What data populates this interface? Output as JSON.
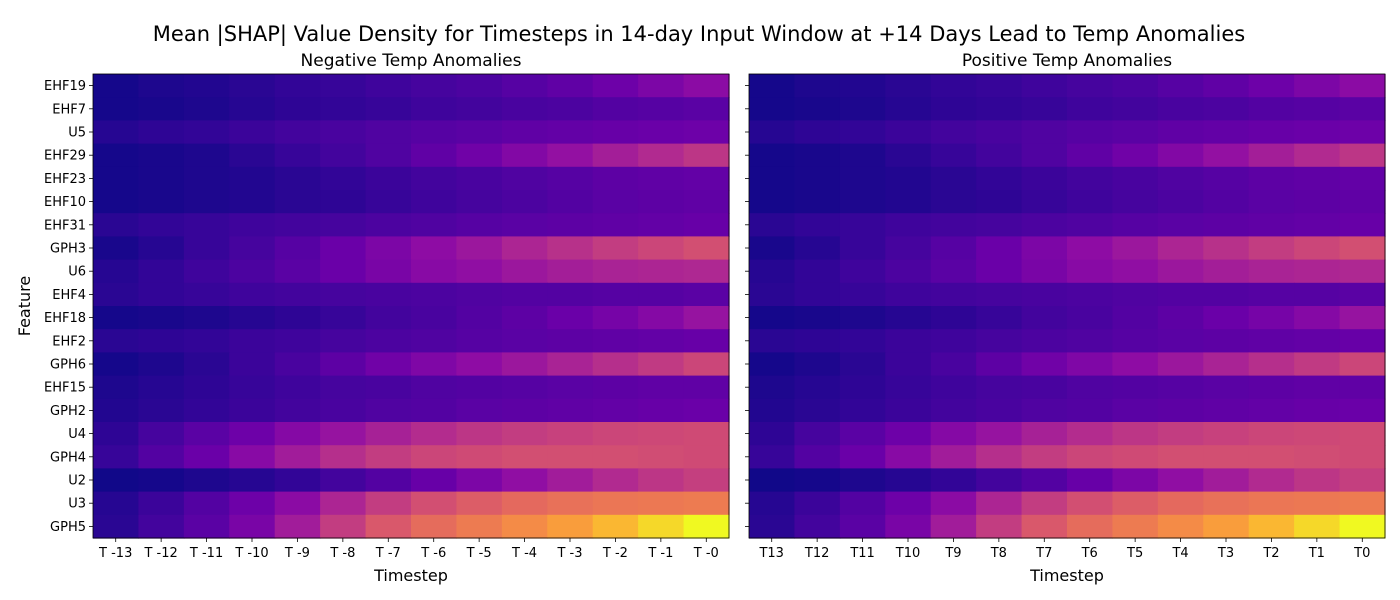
{
  "chart_data": {
    "type": "heatmap",
    "suptitle": "Mean |SHAP| Value Density for Timesteps in 14-day Input Window at +14 Days Lead to Temp Anomalies",
    "ylabel": "Feature",
    "colormap": "plasma",
    "features": [
      "EHF19",
      "EHF7",
      "U5",
      "EHF29",
      "EHF23",
      "EHF10",
      "EHF31",
      "GPH3",
      "U6",
      "EHF4",
      "EHF18",
      "EHF2",
      "GPH6",
      "EHF15",
      "GPH2",
      "U4",
      "GPH4",
      "U2",
      "U3",
      "GPH5"
    ],
    "panels": [
      {
        "title": "Negative Temp Anomalies",
        "xlabel": "Timestep",
        "xticks": [
          "T -13",
          "T -12",
          "T -11",
          "T -10",
          "T -9",
          "T -8",
          "T -7",
          "T -6",
          "T -5",
          "T -4",
          "T -3",
          "T -2",
          "T -1",
          "T -0"
        ],
        "values": [
          [
            0.02,
            0.04,
            0.05,
            0.07,
            0.09,
            0.1,
            0.12,
            0.14,
            0.16,
            0.19,
            0.22,
            0.26,
            0.31,
            0.36
          ],
          [
            0.02,
            0.03,
            0.04,
            0.06,
            0.08,
            0.09,
            0.1,
            0.12,
            0.13,
            0.15,
            0.16,
            0.18,
            0.19,
            0.2
          ],
          [
            0.06,
            0.08,
            0.09,
            0.11,
            0.13,
            0.15,
            0.17,
            0.19,
            0.2,
            0.22,
            0.23,
            0.24,
            0.25,
            0.26
          ],
          [
            0.02,
            0.03,
            0.04,
            0.07,
            0.1,
            0.13,
            0.17,
            0.22,
            0.27,
            0.33,
            0.39,
            0.45,
            0.5,
            0.55
          ],
          [
            0.02,
            0.03,
            0.04,
            0.05,
            0.07,
            0.09,
            0.11,
            0.13,
            0.15,
            0.17,
            0.19,
            0.21,
            0.22,
            0.23
          ],
          [
            0.02,
            0.03,
            0.04,
            0.05,
            0.07,
            0.08,
            0.1,
            0.12,
            0.14,
            0.16,
            0.18,
            0.2,
            0.21,
            0.22
          ],
          [
            0.07,
            0.09,
            0.1,
            0.12,
            0.13,
            0.14,
            0.16,
            0.17,
            0.19,
            0.2,
            0.21,
            0.22,
            0.23,
            0.24
          ],
          [
            0.03,
            0.06,
            0.1,
            0.14,
            0.19,
            0.25,
            0.31,
            0.37,
            0.42,
            0.48,
            0.53,
            0.58,
            0.62,
            0.66
          ],
          [
            0.06,
            0.09,
            0.12,
            0.16,
            0.2,
            0.25,
            0.3,
            0.35,
            0.38,
            0.42,
            0.45,
            0.47,
            0.48,
            0.49
          ],
          [
            0.07,
            0.09,
            0.1,
            0.12,
            0.13,
            0.14,
            0.15,
            0.16,
            0.17,
            0.18,
            0.18,
            0.19,
            0.19,
            0.2
          ],
          [
            0.02,
            0.03,
            0.04,
            0.06,
            0.08,
            0.1,
            0.13,
            0.15,
            0.18,
            0.21,
            0.25,
            0.29,
            0.34,
            0.4
          ],
          [
            0.07,
            0.08,
            0.09,
            0.11,
            0.12,
            0.14,
            0.16,
            0.17,
            0.19,
            0.2,
            0.21,
            0.22,
            0.23,
            0.24
          ],
          [
            0.02,
            0.04,
            0.07,
            0.11,
            0.15,
            0.21,
            0.27,
            0.32,
            0.37,
            0.42,
            0.47,
            0.52,
            0.57,
            0.62
          ],
          [
            0.04,
            0.06,
            0.08,
            0.1,
            0.12,
            0.14,
            0.15,
            0.17,
            0.18,
            0.19,
            0.2,
            0.21,
            0.22,
            0.22
          ],
          [
            0.05,
            0.07,
            0.09,
            0.11,
            0.13,
            0.15,
            0.17,
            0.18,
            0.2,
            0.21,
            0.22,
            0.23,
            0.24,
            0.25
          ],
          [
            0.08,
            0.14,
            0.2,
            0.26,
            0.34,
            0.4,
            0.46,
            0.51,
            0.55,
            0.58,
            0.6,
            0.62,
            0.63,
            0.64
          ],
          [
            0.1,
            0.18,
            0.25,
            0.35,
            0.44,
            0.52,
            0.58,
            0.62,
            0.64,
            0.66,
            0.66,
            0.66,
            0.65,
            0.64
          ],
          [
            0.01,
            0.02,
            0.04,
            0.06,
            0.09,
            0.13,
            0.18,
            0.24,
            0.31,
            0.38,
            0.44,
            0.5,
            0.55,
            0.59
          ],
          [
            0.06,
            0.11,
            0.18,
            0.26,
            0.36,
            0.48,
            0.58,
            0.66,
            0.72,
            0.77,
            0.8,
            0.82,
            0.83,
            0.84
          ],
          [
            0.07,
            0.13,
            0.2,
            0.3,
            0.44,
            0.58,
            0.7,
            0.78,
            0.84,
            0.89,
            0.93,
            0.96,
            0.98,
            1.0
          ]
        ]
      },
      {
        "title": "Positive Temp Anomalies",
        "xlabel": "Timestep",
        "xticks": [
          "T13",
          "T12",
          "T11",
          "T10",
          "T9",
          "T8",
          "T7",
          "T6",
          "T5",
          "T4",
          "T3",
          "T2",
          "T1",
          "T0"
        ],
        "values": [
          [
            0.02,
            0.04,
            0.05,
            0.07,
            0.09,
            0.1,
            0.12,
            0.14,
            0.16,
            0.19,
            0.22,
            0.26,
            0.31,
            0.36
          ],
          [
            0.02,
            0.03,
            0.04,
            0.06,
            0.08,
            0.09,
            0.1,
            0.12,
            0.13,
            0.15,
            0.16,
            0.18,
            0.19,
            0.2
          ],
          [
            0.06,
            0.08,
            0.09,
            0.11,
            0.13,
            0.15,
            0.17,
            0.19,
            0.2,
            0.22,
            0.23,
            0.24,
            0.25,
            0.26
          ],
          [
            0.02,
            0.03,
            0.04,
            0.07,
            0.1,
            0.13,
            0.17,
            0.22,
            0.27,
            0.33,
            0.39,
            0.45,
            0.5,
            0.55
          ],
          [
            0.02,
            0.03,
            0.04,
            0.05,
            0.07,
            0.09,
            0.11,
            0.13,
            0.15,
            0.17,
            0.19,
            0.21,
            0.22,
            0.23
          ],
          [
            0.02,
            0.03,
            0.04,
            0.05,
            0.07,
            0.08,
            0.1,
            0.12,
            0.14,
            0.16,
            0.18,
            0.2,
            0.21,
            0.22
          ],
          [
            0.07,
            0.09,
            0.1,
            0.12,
            0.13,
            0.14,
            0.16,
            0.17,
            0.19,
            0.2,
            0.21,
            0.22,
            0.23,
            0.24
          ],
          [
            0.03,
            0.06,
            0.1,
            0.14,
            0.19,
            0.25,
            0.31,
            0.37,
            0.42,
            0.48,
            0.53,
            0.58,
            0.62,
            0.66
          ],
          [
            0.06,
            0.09,
            0.12,
            0.16,
            0.2,
            0.25,
            0.3,
            0.35,
            0.38,
            0.42,
            0.45,
            0.47,
            0.48,
            0.49
          ],
          [
            0.07,
            0.09,
            0.1,
            0.12,
            0.13,
            0.14,
            0.15,
            0.16,
            0.17,
            0.18,
            0.18,
            0.19,
            0.19,
            0.2
          ],
          [
            0.02,
            0.03,
            0.04,
            0.06,
            0.08,
            0.1,
            0.13,
            0.15,
            0.18,
            0.21,
            0.25,
            0.29,
            0.34,
            0.4
          ],
          [
            0.07,
            0.08,
            0.09,
            0.11,
            0.12,
            0.14,
            0.16,
            0.17,
            0.19,
            0.2,
            0.21,
            0.22,
            0.23,
            0.24
          ],
          [
            0.02,
            0.04,
            0.07,
            0.11,
            0.15,
            0.21,
            0.27,
            0.32,
            0.37,
            0.42,
            0.47,
            0.52,
            0.57,
            0.62
          ],
          [
            0.04,
            0.06,
            0.08,
            0.1,
            0.12,
            0.14,
            0.15,
            0.17,
            0.18,
            0.19,
            0.2,
            0.21,
            0.22,
            0.22
          ],
          [
            0.05,
            0.07,
            0.09,
            0.11,
            0.13,
            0.15,
            0.17,
            0.18,
            0.2,
            0.21,
            0.22,
            0.23,
            0.24,
            0.25
          ],
          [
            0.08,
            0.14,
            0.2,
            0.26,
            0.34,
            0.4,
            0.46,
            0.51,
            0.55,
            0.58,
            0.6,
            0.62,
            0.63,
            0.64
          ],
          [
            0.1,
            0.18,
            0.25,
            0.35,
            0.44,
            0.52,
            0.58,
            0.62,
            0.64,
            0.66,
            0.66,
            0.66,
            0.65,
            0.64
          ],
          [
            0.01,
            0.02,
            0.04,
            0.06,
            0.09,
            0.13,
            0.18,
            0.24,
            0.31,
            0.38,
            0.44,
            0.5,
            0.55,
            0.59
          ],
          [
            0.06,
            0.11,
            0.18,
            0.26,
            0.36,
            0.48,
            0.58,
            0.66,
            0.72,
            0.77,
            0.8,
            0.82,
            0.83,
            0.84
          ],
          [
            0.07,
            0.13,
            0.2,
            0.3,
            0.44,
            0.58,
            0.7,
            0.78,
            0.84,
            0.89,
            0.93,
            0.96,
            0.98,
            1.0
          ]
        ]
      }
    ]
  }
}
